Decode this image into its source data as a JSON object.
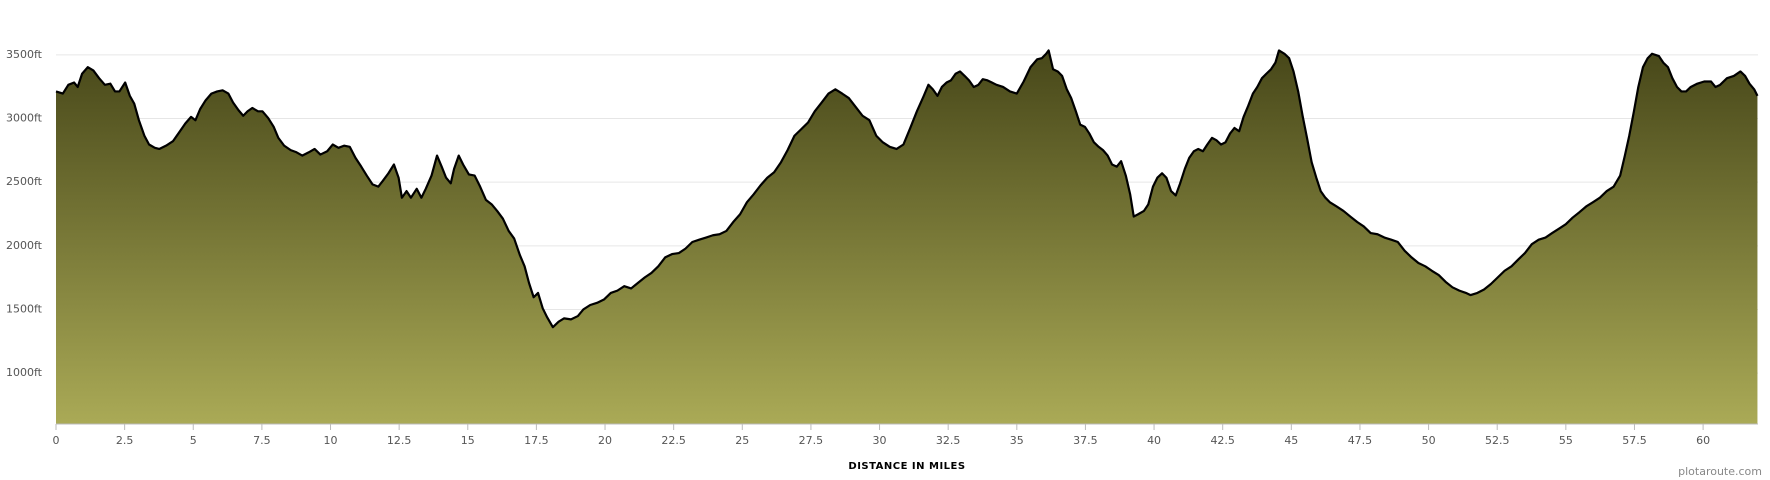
{
  "chart_data": {
    "type": "area",
    "xlabel": "DISTANCE IN MILES",
    "credit": "plotaroute.com",
    "line_color": "#000000",
    "fill_top": "#474719",
    "fill_bottom": "#aaaa56",
    "grid": true,
    "xlim": [
      0,
      62
    ],
    "ylim": [
      600,
      3900
    ],
    "xticks": [
      0,
      2.5,
      5,
      7.5,
      10,
      12.5,
      15,
      17.5,
      20,
      22.5,
      25,
      27.5,
      30,
      32.5,
      35,
      37.5,
      40,
      42.5,
      45,
      47.5,
      50,
      52.5,
      55,
      57.5,
      60
    ],
    "yticks": [
      {
        "value": 1000,
        "label": "1000ft"
      },
      {
        "value": 1500,
        "label": "1500ft"
      },
      {
        "value": 2000,
        "label": "2000ft"
      },
      {
        "value": 2500,
        "label": "2500ft"
      },
      {
        "value": 3000,
        "label": "3000ft"
      },
      {
        "value": 3500,
        "label": "3500ft"
      }
    ],
    "x": [
      0,
      0.25,
      0.45,
      0.66,
      0.79,
      0.95,
      1.16,
      1.36,
      1.57,
      1.78,
      1.98,
      2.15,
      2.31,
      2.52,
      2.69,
      2.85,
      3.02,
      3.22,
      3.39,
      3.6,
      3.76,
      4.01,
      4.26,
      4.46,
      4.71,
      4.92,
      5.08,
      5.25,
      5.45,
      5.66,
      5.87,
      6.07,
      6.28,
      6.45,
      6.65,
      6.82,
      6.98,
      7.15,
      7.36,
      7.52,
      7.73,
      7.93,
      8.1,
      8.31,
      8.55,
      8.76,
      8.97,
      9.21,
      9.42,
      9.63,
      9.88,
      10.08,
      10.29,
      10.5,
      10.7,
      10.91,
      11.12,
      11.32,
      11.53,
      11.74,
      11.9,
      12.11,
      12.31,
      12.48,
      12.6,
      12.77,
      12.93,
      13.14,
      13.31,
      13.47,
      13.68,
      13.88,
      14.05,
      14.21,
      14.38,
      14.5,
      14.67,
      14.83,
      15.04,
      15.25,
      15.45,
      15.66,
      15.87,
      16.07,
      16.28,
      16.49,
      16.69,
      16.9,
      17.07,
      17.23,
      17.4,
      17.56,
      17.73,
      17.89,
      18.1,
      18.31,
      18.51,
      18.76,
      19.01,
      19.21,
      19.46,
      19.71,
      19.96,
      20.21,
      20.45,
      20.7,
      20.95,
      21.2,
      21.45,
      21.69,
      21.94,
      22.19,
      22.44,
      22.69,
      22.93,
      23.18,
      23.43,
      23.68,
      23.93,
      24.17,
      24.42,
      24.67,
      24.92,
      25.17,
      25.41,
      25.66,
      25.91,
      26.16,
      26.41,
      26.65,
      26.9,
      27.15,
      27.4,
      27.64,
      27.89,
      28.14,
      28.39,
      28.64,
      28.88,
      29.13,
      29.38,
      29.63,
      29.88,
      30.12,
      30.37,
      30.62,
      30.87,
      31.12,
      31.36,
      31.61,
      31.78,
      31.94,
      32.11,
      32.27,
      32.44,
      32.6,
      32.77,
      32.93,
      33.1,
      33.26,
      33.43,
      33.6,
      33.76,
      33.93,
      34.09,
      34.26,
      34.5,
      34.75,
      35,
      35.25,
      35.5,
      35.74,
      35.91,
      36.07,
      36.16,
      36.32,
      36.49,
      36.65,
      36.82,
      36.98,
      37.15,
      37.31,
      37.48,
      37.64,
      37.81,
      37.98,
      38.14,
      38.31,
      38.47,
      38.64,
      38.8,
      38.97,
      39.13,
      39.26,
      39.42,
      39.63,
      39.79,
      39.96,
      40.12,
      40.29,
      40.45,
      40.62,
      40.79,
      40.95,
      41.12,
      41.28,
      41.45,
      41.61,
      41.78,
      41.94,
      42.11,
      42.27,
      42.44,
      42.6,
      42.77,
      42.93,
      43.1,
      43.26,
      43.43,
      43.6,
      43.76,
      43.93,
      44.09,
      44.26,
      44.42,
      44.55,
      44.75,
      44.92,
      45.08,
      45.25,
      45.41,
      45.58,
      45.74,
      45.91,
      46.07,
      46.24,
      46.4,
      46.65,
      46.9,
      47.15,
      47.4,
      47.64,
      47.89,
      48.14,
      48.39,
      48.64,
      48.88,
      49.13,
      49.38,
      49.63,
      49.88,
      50.12,
      50.37,
      50.62,
      50.87,
      51.12,
      51.36,
      51.53,
      51.78,
      52.02,
      52.27,
      52.52,
      52.77,
      53.02,
      53.26,
      53.51,
      53.76,
      54.01,
      54.26,
      54.5,
      54.75,
      55,
      55.25,
      55.5,
      55.74,
      55.99,
      56.24,
      56.49,
      56.74,
      56.98,
      57.15,
      57.31,
      57.48,
      57.64,
      57.81,
      57.98,
      58.14,
      58.39,
      58.55,
      58.72,
      58.88,
      59.05,
      59.21,
      59.38,
      59.55,
      59.79,
      60.04,
      60.29,
      60.45,
      60.62,
      60.87,
      61.12,
      61.36,
      61.53,
      61.69,
      61.86,
      61.98
    ],
    "values": [
      3213,
      3196,
      3265,
      3283,
      3248,
      3352,
      3404,
      3378,
      3317,
      3265,
      3274,
      3213,
      3213,
      3283,
      3178,
      3117,
      2987,
      2865,
      2796,
      2770,
      2761,
      2787,
      2822,
      2883,
      2961,
      3013,
      2987,
      3074,
      3143,
      3196,
      3213,
      3222,
      3196,
      3126,
      3065,
      3022,
      3057,
      3083,
      3057,
      3057,
      3004,
      2935,
      2848,
      2787,
      2752,
      2735,
      2709,
      2735,
      2761,
      2717,
      2743,
      2796,
      2770,
      2787,
      2778,
      2691,
      2622,
      2552,
      2483,
      2465,
      2509,
      2570,
      2639,
      2535,
      2378,
      2430,
      2378,
      2448,
      2378,
      2448,
      2552,
      2709,
      2622,
      2535,
      2491,
      2604,
      2709,
      2639,
      2561,
      2552,
      2465,
      2361,
      2326,
      2274,
      2213,
      2117,
      2057,
      1926,
      1839,
      1709,
      1596,
      1630,
      1509,
      1439,
      1361,
      1404,
      1430,
      1422,
      1448,
      1500,
      1535,
      1552,
      1578,
      1630,
      1648,
      1683,
      1665,
      1709,
      1752,
      1787,
      1839,
      1909,
      1935,
      1943,
      1978,
      2030,
      2048,
      2065,
      2083,
      2091,
      2117,
      2187,
      2248,
      2343,
      2404,
      2474,
      2535,
      2578,
      2657,
      2752,
      2865,
      2917,
      2970,
      3057,
      3126,
      3196,
      3230,
      3196,
      3161,
      3091,
      3022,
      2987,
      2865,
      2813,
      2778,
      2761,
      2796,
      2926,
      3057,
      3178,
      3265,
      3230,
      3178,
      3248,
      3283,
      3300,
      3352,
      3370,
      3335,
      3300,
      3248,
      3265,
      3309,
      3300,
      3283,
      3265,
      3248,
      3213,
      3196,
      3291,
      3404,
      3465,
      3474,
      3509,
      3535,
      3387,
      3370,
      3335,
      3230,
      3161,
      3057,
      2952,
      2935,
      2883,
      2813,
      2778,
      2752,
      2709,
      2639,
      2622,
      2665,
      2552,
      2404,
      2230,
      2248,
      2274,
      2326,
      2465,
      2535,
      2570,
      2535,
      2430,
      2396,
      2491,
      2604,
      2691,
      2743,
      2761,
      2743,
      2796,
      2848,
      2830,
      2796,
      2813,
      2883,
      2926,
      2900,
      3013,
      3100,
      3196,
      3248,
      3317,
      3352,
      3387,
      3439,
      3535,
      3509,
      3474,
      3370,
      3213,
      3022,
      2839,
      2657,
      2535,
      2430,
      2378,
      2343,
      2309,
      2274,
      2230,
      2187,
      2152,
      2100,
      2091,
      2065,
      2048,
      2030,
      1961,
      1909,
      1865,
      1839,
      1804,
      1770,
      1717,
      1674,
      1648,
      1630,
      1613,
      1630,
      1657,
      1700,
      1752,
      1804,
      1839,
      1891,
      1943,
      2013,
      2048,
      2065,
      2100,
      2135,
      2170,
      2222,
      2265,
      2309,
      2343,
      2378,
      2430,
      2465,
      2552,
      2709,
      2865,
      3057,
      3248,
      3404,
      3474,
      3509,
      3491,
      3439,
      3404,
      3317,
      3248,
      3213,
      3213,
      3248,
      3274,
      3291,
      3291,
      3248,
      3265,
      3317,
      3335,
      3370,
      3335,
      3274,
      3230,
      3178
    ]
  }
}
